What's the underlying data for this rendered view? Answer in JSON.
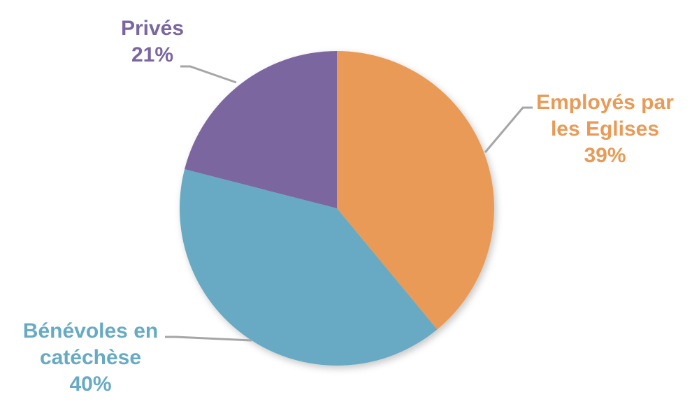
{
  "chart_data": {
    "type": "pie",
    "title": "",
    "categories": [
      "Employés par les Eglises",
      "Bénévoles en catéchèse",
      "Privés"
    ],
    "values": [
      39,
      40,
      21
    ],
    "unit": "%",
    "colors": [
      "#E99A56",
      "#67AAC4",
      "#7B66A0"
    ],
    "start_angle_deg": 0,
    "direction": "clockwise",
    "legend": "none (data labels with leader lines)",
    "labels": [
      {
        "lines": [
          "Employés par",
          "les Eglises"
        ],
        "pct": "39%",
        "color": "#E99A56"
      },
      {
        "lines": [
          "Bénévoles en",
          "catéchèse"
        ],
        "pct": "40%",
        "color": "#67AAC4"
      },
      {
        "lines": [
          "Privés"
        ],
        "pct": "21%",
        "color": "#7B66A0"
      }
    ]
  },
  "labels": {
    "employes": {
      "line1": "Employés par",
      "line2": "les Eglises",
      "pct": "39%"
    },
    "benevoles": {
      "line1": "Bénévoles en",
      "line2": "catéchèse",
      "pct": "40%"
    },
    "prives": {
      "line1": "Privés",
      "pct": "21%"
    }
  },
  "leader_line_color": "#A6A6A6"
}
